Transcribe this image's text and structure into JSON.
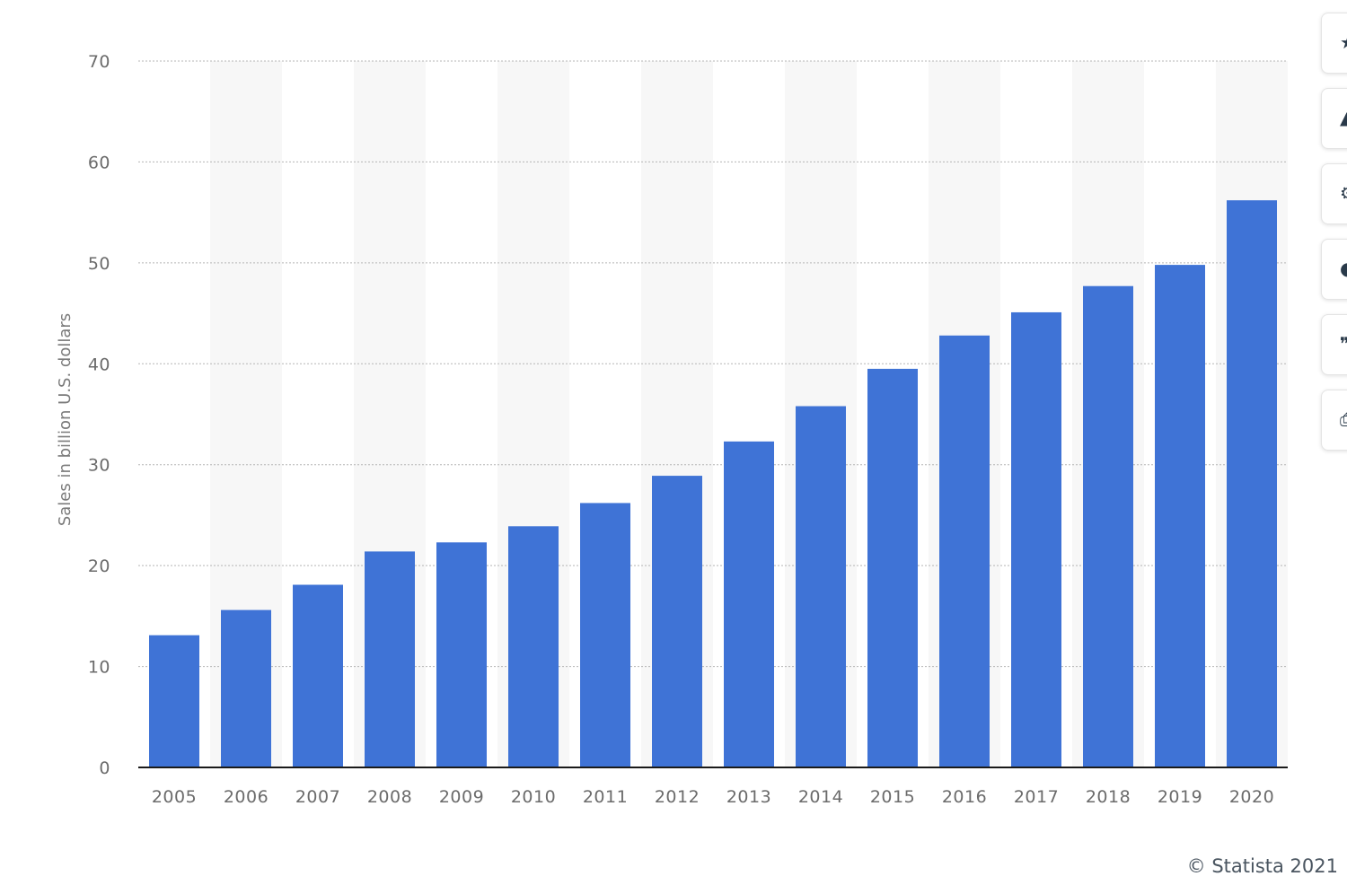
{
  "chart_data": {
    "type": "bar",
    "categories": [
      "2005",
      "2006",
      "2007",
      "2008",
      "2009",
      "2010",
      "2011",
      "2012",
      "2013",
      "2014",
      "2015",
      "2016",
      "2017",
      "2018",
      "2019",
      "2020"
    ],
    "values": [
      13.1,
      15.6,
      18.1,
      21.4,
      22.3,
      23.9,
      26.2,
      28.9,
      32.3,
      35.8,
      39.5,
      42.8,
      45.1,
      47.7,
      49.8,
      56.2
    ],
    "ylabel": "Sales in billion U.S. dollars",
    "ylim": [
      0,
      70
    ],
    "yticks": [
      0,
      10,
      20,
      30,
      40,
      50,
      60,
      70
    ],
    "grid": true,
    "bar_color": "#3f73d6",
    "band_color": "#f7f7f7"
  },
  "credit": "© Statista 2021",
  "toolbar": {
    "buttons": [
      {
        "name": "star-icon",
        "glyph": "★"
      },
      {
        "name": "bell-icon",
        "glyph": "▲"
      },
      {
        "name": "settings-icon",
        "glyph": "⚙"
      },
      {
        "name": "share-icon",
        "glyph": "●"
      },
      {
        "name": "quote-icon",
        "glyph": "❞"
      },
      {
        "name": "print-icon",
        "glyph": "⎙"
      }
    ]
  }
}
